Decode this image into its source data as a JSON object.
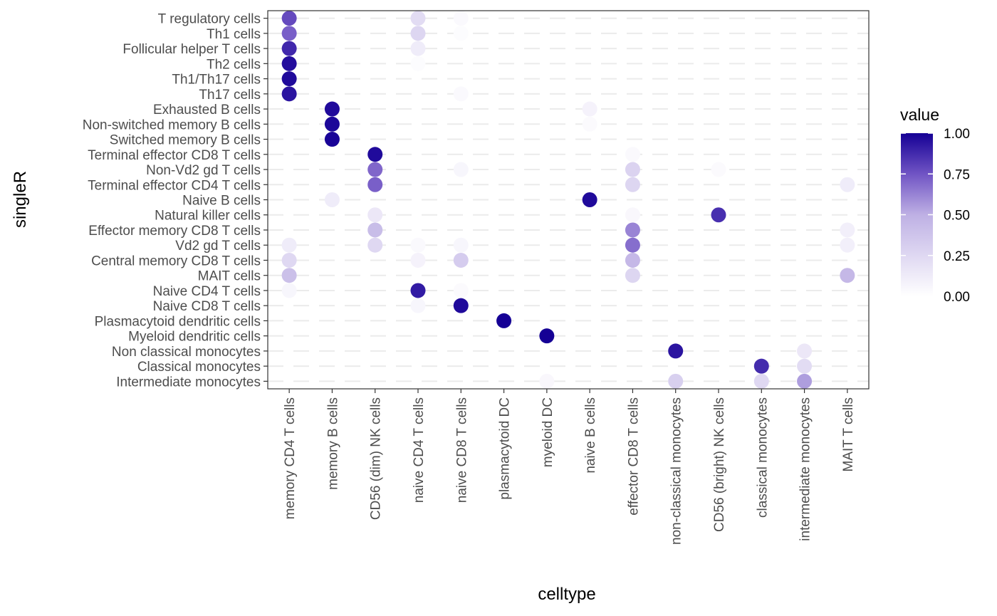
{
  "chart_data": {
    "type": "scatter",
    "subtype": "dot-matrix",
    "xlabel": "celltype",
    "ylabel": "singleR",
    "x_categories": [
      "memory CD4 T cells",
      "memory B cells",
      "CD56 (dim) NK cells",
      "naive CD4 T cells",
      "naive CD8 T cells",
      "plasmacytoid DC",
      "myeloid DC",
      "naive B cells",
      "effector CD8 T cells",
      "non-classical monocytes",
      "CD56 (bright) NK cells",
      "classical monocytes",
      "intermediate monocytes",
      "MAIT T cells"
    ],
    "y_categories": [
      "T regulatory cells",
      "Th1 cells",
      "Follicular helper T cells",
      "Th2 cells",
      "Th1/Th17 cells",
      "Th17 cells",
      "Exhausted B cells",
      "Non-switched memory B cells",
      "Switched memory B cells",
      "Terminal effector CD8 T cells",
      "Non-Vd2 gd T cells",
      "Terminal effector CD4 T cells",
      "Naive B cells",
      "Natural killer cells",
      "Effector memory CD8 T cells",
      "Vd2 gd T cells",
      "Central memory CD8 T cells",
      "MAIT cells",
      "Naive CD4 T cells",
      "Naive CD8 T cells",
      "Plasmacytoid dendritic cells",
      "Myeloid dendritic cells",
      "Non classical monocytes",
      "Classical monocytes",
      "Intermediate monocytes"
    ],
    "points": [
      {
        "x": "memory CD4 T cells",
        "y": "T regulatory cells",
        "value": 0.78
      },
      {
        "x": "memory CD4 T cells",
        "y": "Th1 cells",
        "value": 0.72
      },
      {
        "x": "memory CD4 T cells",
        "y": "Follicular helper T cells",
        "value": 0.88
      },
      {
        "x": "memory CD4 T cells",
        "y": "Th2 cells",
        "value": 0.96
      },
      {
        "x": "memory CD4 T cells",
        "y": "Th1/Th17 cells",
        "value": 0.97
      },
      {
        "x": "memory CD4 T cells",
        "y": "Th17 cells",
        "value": 0.94
      },
      {
        "x": "memory CD4 T cells",
        "y": "Vd2 gd T cells",
        "value": 0.12
      },
      {
        "x": "memory CD4 T cells",
        "y": "Central memory CD8 T cells",
        "value": 0.25
      },
      {
        "x": "memory CD4 T cells",
        "y": "MAIT cells",
        "value": 0.4
      },
      {
        "x": "memory CD4 T cells",
        "y": "Naive CD4 T cells",
        "value": 0.06
      },
      {
        "x": "memory B cells",
        "y": "Exhausted B cells",
        "value": 0.97
      },
      {
        "x": "memory B cells",
        "y": "Non-switched memory B cells",
        "value": 0.98
      },
      {
        "x": "memory B cells",
        "y": "Switched memory B cells",
        "value": 0.99
      },
      {
        "x": "memory B cells",
        "y": "Naive B cells",
        "value": 0.12
      },
      {
        "x": "CD56 (dim) NK cells",
        "y": "Terminal effector CD8 T cells",
        "value": 0.97
      },
      {
        "x": "CD56 (dim) NK cells",
        "y": "Non-Vd2 gd T cells",
        "value": 0.7
      },
      {
        "x": "CD56 (dim) NK cells",
        "y": "Terminal effector CD4 T cells",
        "value": 0.72
      },
      {
        "x": "CD56 (dim) NK cells",
        "y": "Natural killer cells",
        "value": 0.15
      },
      {
        "x": "CD56 (dim) NK cells",
        "y": "Effector memory CD8 T cells",
        "value": 0.42
      },
      {
        "x": "CD56 (dim) NK cells",
        "y": "Vd2 gd T cells",
        "value": 0.25
      },
      {
        "x": "naive CD4 T cells",
        "y": "T regulatory cells",
        "value": 0.22
      },
      {
        "x": "naive CD4 T cells",
        "y": "Th1 cells",
        "value": 0.26
      },
      {
        "x": "naive CD4 T cells",
        "y": "Follicular helper T cells",
        "value": 0.12
      },
      {
        "x": "naive CD4 T cells",
        "y": "Th2 cells",
        "value": 0.02
      },
      {
        "x": "naive CD4 T cells",
        "y": "Vd2 gd T cells",
        "value": 0.04
      },
      {
        "x": "naive CD4 T cells",
        "y": "Central memory CD8 T cells",
        "value": 0.08
      },
      {
        "x": "naive CD4 T cells",
        "y": "Naive CD4 T cells",
        "value": 0.92
      },
      {
        "x": "naive CD4 T cells",
        "y": "Naive CD8 T cells",
        "value": 0.06
      },
      {
        "x": "naive CD8 T cells",
        "y": "T regulatory cells",
        "value": 0.04
      },
      {
        "x": "naive CD8 T cells",
        "y": "Th1 cells",
        "value": 0.02
      },
      {
        "x": "naive CD8 T cells",
        "y": "Th17 cells",
        "value": 0.04
      },
      {
        "x": "naive CD8 T cells",
        "y": "Non-Vd2 gd T cells",
        "value": 0.06
      },
      {
        "x": "naive CD8 T cells",
        "y": "Vd2 gd T cells",
        "value": 0.06
      },
      {
        "x": "naive CD8 T cells",
        "y": "Central memory CD8 T cells",
        "value": 0.32
      },
      {
        "x": "naive CD8 T cells",
        "y": "Naive CD4 T cells",
        "value": 0.03
      },
      {
        "x": "naive CD8 T cells",
        "y": "Naive CD8 T cells",
        "value": 0.97
      },
      {
        "x": "plasmacytoid DC",
        "y": "Plasmacytoid dendritic cells",
        "value": 1.0
      },
      {
        "x": "myeloid DC",
        "y": "Myeloid dendritic cells",
        "value": 1.0
      },
      {
        "x": "myeloid DC",
        "y": "Intermediate monocytes",
        "value": 0.05
      },
      {
        "x": "naive B cells",
        "y": "Exhausted B cells",
        "value": 0.08
      },
      {
        "x": "naive B cells",
        "y": "Non-switched memory B cells",
        "value": 0.03
      },
      {
        "x": "naive B cells",
        "y": "Naive B cells",
        "value": 0.97
      },
      {
        "x": "effector CD8 T cells",
        "y": "Terminal effector CD8 T cells",
        "value": 0.04
      },
      {
        "x": "effector CD8 T cells",
        "y": "Non-Vd2 gd T cells",
        "value": 0.28
      },
      {
        "x": "effector CD8 T cells",
        "y": "Terminal effector CD4 T cells",
        "value": 0.26
      },
      {
        "x": "effector CD8 T cells",
        "y": "Natural killer cells",
        "value": 0.05
      },
      {
        "x": "effector CD8 T cells",
        "y": "Effector memory CD8 T cells",
        "value": 0.62
      },
      {
        "x": "effector CD8 T cells",
        "y": "Vd2 gd T cells",
        "value": 0.68
      },
      {
        "x": "effector CD8 T cells",
        "y": "Central memory CD8 T cells",
        "value": 0.45
      },
      {
        "x": "effector CD8 T cells",
        "y": "MAIT cells",
        "value": 0.26
      },
      {
        "x": "non-classical monocytes",
        "y": "Non classical monocytes",
        "value": 0.94
      },
      {
        "x": "non-classical monocytes",
        "y": "Intermediate monocytes",
        "value": 0.3
      },
      {
        "x": "CD56 (bright) NK cells",
        "y": "Non-Vd2 gd T cells",
        "value": 0.03
      },
      {
        "x": "CD56 (bright) NK cells",
        "y": "Natural killer cells",
        "value": 0.86
      },
      {
        "x": "classical monocytes",
        "y": "Classical monocytes",
        "value": 0.87
      },
      {
        "x": "classical monocytes",
        "y": "Intermediate monocytes",
        "value": 0.25
      },
      {
        "x": "intermediate monocytes",
        "y": "Non classical monocytes",
        "value": 0.15
      },
      {
        "x": "intermediate monocytes",
        "y": "Classical monocytes",
        "value": 0.22
      },
      {
        "x": "intermediate monocytes",
        "y": "Intermediate monocytes",
        "value": 0.55
      },
      {
        "x": "MAIT T cells",
        "y": "Terminal effector CD4 T cells",
        "value": 0.12
      },
      {
        "x": "MAIT T cells",
        "y": "Effector memory CD8 T cells",
        "value": 0.1
      },
      {
        "x": "MAIT T cells",
        "y": "Vd2 gd T cells",
        "value": 0.1
      },
      {
        "x": "MAIT T cells",
        "y": "MAIT cells",
        "value": 0.45
      }
    ],
    "legend": {
      "title": "value",
      "ticks": [
        "0.00",
        "0.25",
        "0.50",
        "0.75",
        "1.00"
      ],
      "placement": "right",
      "low_color": "#ffffff",
      "high_color": "#150095"
    },
    "grid": true
  }
}
